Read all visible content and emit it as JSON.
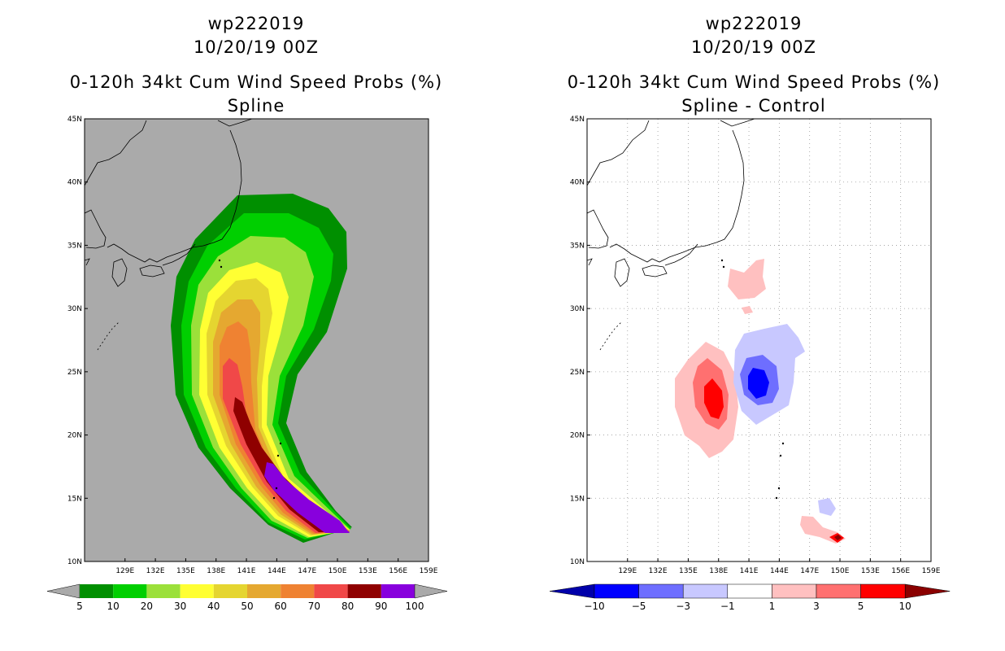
{
  "panels": [
    {
      "name": "left",
      "title_line1": "wp222019",
      "title_line2": "10/20/19 00Z",
      "title_line3": "0-120h 34kt Cum Wind Speed Probs (%)",
      "title_line4": "Spline"
    },
    {
      "name": "right",
      "title_line1": "wp222019",
      "title_line2": "10/20/19 00Z",
      "title_line3": "0-120h 34kt Cum Wind Speed Probs (%)",
      "title_line4": "Spline - Control"
    }
  ],
  "chart_data": [
    {
      "type": "heatmap",
      "title": "0-120h 34kt Cum Wind Speed Probs (%) Spline",
      "units": "%",
      "x_range": [
        125,
        159
      ],
      "y_range": [
        10,
        45
      ],
      "xticks": [
        "129E",
        "132E",
        "135E",
        "138E",
        "141E",
        "144E",
        "147E",
        "150E",
        "153E",
        "156E",
        "159E"
      ],
      "yticks": [
        "10N",
        "15N",
        "20N",
        "25N",
        "30N",
        "35N",
        "40N",
        "45N"
      ],
      "colorbar": {
        "labels": [
          "5",
          "10",
          "20",
          "30",
          "40",
          "50",
          "60",
          "70",
          "80",
          "90",
          "100"
        ],
        "colors": [
          "#008f00",
          "#00cf00",
          "#9be03a",
          "#ffff33",
          "#e5d530",
          "#e5a830",
          "#ef8232",
          "#f04848",
          "#8f0000",
          "#8800dd"
        ]
      },
      "background": "#aaaaaa",
      "land_outline": "coastlines"
    },
    {
      "type": "heatmap",
      "title": "0-120h 34kt Cum Wind Speed Probs (%) Spline - Control",
      "units": "%",
      "x_range": [
        125,
        159
      ],
      "y_range": [
        10,
        45
      ],
      "xticks": [
        "129E",
        "132E",
        "135E",
        "138E",
        "141E",
        "144E",
        "147E",
        "150E",
        "153E",
        "156E",
        "159E"
      ],
      "yticks": [
        "10N",
        "15N",
        "20N",
        "25N",
        "30N",
        "35N",
        "40N",
        "45N"
      ],
      "colorbar": {
        "labels": [
          "−10",
          "−5",
          "−3",
          "−1",
          "1",
          "3",
          "5",
          "10"
        ],
        "colors": [
          "#0000aa",
          "#0000ff",
          "#6e6eff",
          "#c8c8ff",
          "#ffffff",
          "#ffc0c0",
          "#ff7070",
          "#ff0000",
          "#8b0000"
        ]
      },
      "background": "#ffffff",
      "grid": true
    }
  ]
}
